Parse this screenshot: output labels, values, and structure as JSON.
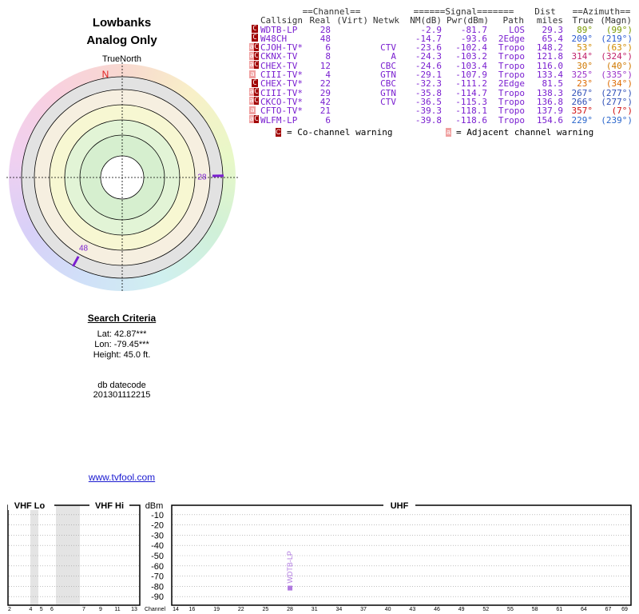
{
  "header": {
    "title": "Lowbanks",
    "subtitle": "Analog Only"
  },
  "polar": {
    "north_label": "TrueNorth",
    "n": "N",
    "stations": [
      {
        "label": "28",
        "azimuth": 89,
        "color": "#7a1fd0"
      },
      {
        "label": "48",
        "azimuth": 209,
        "color": "#7a1fd0"
      }
    ]
  },
  "table": {
    "header_top": [
      "==Channel==",
      "======Signal=======",
      "Dist",
      "==Azimuth=="
    ],
    "header": [
      "Callsign",
      "Real",
      "(Virt)",
      "Netwk",
      "NM(dB)",
      "Pwr(dBm)",
      "Path",
      "miles",
      "True",
      "(Magn)"
    ],
    "rows": [
      {
        "flags": [
          "C"
        ],
        "callsign": "WDTB-LP",
        "real": "28",
        "nm": "-2.9",
        "pwr": "-81.7",
        "path": "LOS",
        "dist": "29.3",
        "true": "89°",
        "magn": "(99°)",
        "az_color": "#7a9a00",
        "bg": "#fbdede"
      },
      {
        "flags": [
          "C"
        ],
        "callsign": "W48CH",
        "real": "48",
        "nm": "-14.7",
        "pwr": "-93.6",
        "path": "2Edge",
        "dist": "65.4",
        "true": "209°",
        "magn": "(219°)",
        "az_color": "#2a5ad0"
      },
      {
        "flags": [
          "a",
          "C"
        ],
        "callsign": "CJOH-TV*",
        "real": "6",
        "netwk": "CTV",
        "nm": "-23.6",
        "pwr": "-102.4",
        "path": "Tropo",
        "dist": "148.2",
        "true": "53°",
        "magn": "(63°)",
        "az_color": "#d08a00"
      },
      {
        "flags": [
          "a",
          "C"
        ],
        "callsign": "CKNX-TV",
        "real": "8",
        "netwk": "A",
        "nm": "-24.3",
        "pwr": "-103.2",
        "path": "Tropo",
        "dist": "121.8",
        "true": "314°",
        "magn": "(324°)",
        "az_color": "#c0206a"
      },
      {
        "flags": [
          "a",
          "C"
        ],
        "callsign": "CHEX-TV",
        "real": "12",
        "netwk": "CBC",
        "nm": "-24.6",
        "pwr": "-103.4",
        "path": "Tropo",
        "dist": "116.0",
        "true": "30°",
        "magn": "(40°)",
        "az_color": "#d07800"
      },
      {
        "flags": [
          "a"
        ],
        "callsign": "CIII-TV*",
        "real": "4",
        "netwk": "GTN",
        "nm": "-29.1",
        "pwr": "-107.9",
        "path": "Tropo",
        "dist": "133.4",
        "true": "325°",
        "magn": "(335°)",
        "az_color": "#9a30c8"
      },
      {
        "flags": [
          "C"
        ],
        "callsign": "CHEX-TV*",
        "real": "22",
        "netwk": "CBC",
        "nm": "-32.3",
        "pwr": "-111.2",
        "path": "2Edge",
        "dist": "81.5",
        "true": "23°",
        "magn": "(34°)",
        "az_color": "#dd6a00"
      },
      {
        "flags": [
          "a",
          "C"
        ],
        "callsign": "CIII-TV*",
        "real": "29",
        "netwk": "GTN",
        "nm": "-35.8",
        "pwr": "-114.7",
        "path": "Tropo",
        "dist": "138.3",
        "true": "267°",
        "magn": "(277°)",
        "az_color": "#3050b8"
      },
      {
        "flags": [
          "a",
          "C"
        ],
        "callsign": "CKCO-TV*",
        "real": "42",
        "netwk": "CTV",
        "nm": "-36.5",
        "pwr": "-115.3",
        "path": "Tropo",
        "dist": "136.8",
        "true": "266°",
        "magn": "(277°)",
        "az_color": "#3050b8"
      },
      {
        "flags": [
          "a"
        ],
        "callsign": "CFTO-TV*",
        "real": "21",
        "nm": "-39.3",
        "pwr": "-118.1",
        "path": "Tropo",
        "dist": "137.9",
        "true": "357°",
        "magn": "(7°)",
        "az_color": "#d01010"
      },
      {
        "flags": [
          "a",
          "C"
        ],
        "callsign": "WLFM-LP",
        "real": "6",
        "nm": "-39.8",
        "pwr": "-118.6",
        "path": "Tropo",
        "dist": "154.6",
        "true": "229°",
        "magn": "(239°)",
        "az_color": "#2a66cc"
      }
    ]
  },
  "legend": {
    "co": "C",
    "co_text": "= Co-channel warning",
    "adj": "a",
    "adj_text": "= Adjacent channel warning"
  },
  "criteria": {
    "title": "Search Criteria",
    "lines": [
      "Lat: 42.87***",
      "Lon: -79.45***",
      "Height: 45.0 ft."
    ],
    "db_label": "db datecode",
    "db": "201301112215"
  },
  "link": "www.tvfool.com",
  "chart_data": {
    "type": "bar",
    "ylabel": "dBm",
    "xlabel": "Channel",
    "ylim": [
      -100,
      0
    ],
    "yticks": [
      -10,
      -20,
      -30,
      -40,
      -50,
      -60,
      -70,
      -80,
      -90
    ],
    "bands": [
      {
        "name": "VHF Lo",
        "xlim": [
          2,
          6
        ],
        "xticks": [
          2,
          4,
          5,
          6
        ]
      },
      {
        "name": "VHF Hi",
        "xlim": [
          7,
          13
        ],
        "xticks": [
          7,
          9,
          11,
          13
        ]
      },
      {
        "name": "UHF",
        "xlim": [
          14,
          69
        ],
        "xticks": [
          14,
          16,
          19,
          22,
          25,
          28,
          31,
          34,
          37,
          40,
          43,
          46,
          49,
          52,
          55,
          58,
          61,
          64,
          67,
          69
        ]
      }
    ],
    "series": [
      {
        "name": "WDTB-LP",
        "color": "#b07ae0",
        "x": [
          28
        ],
        "values": [
          -81.7
        ]
      }
    ]
  }
}
